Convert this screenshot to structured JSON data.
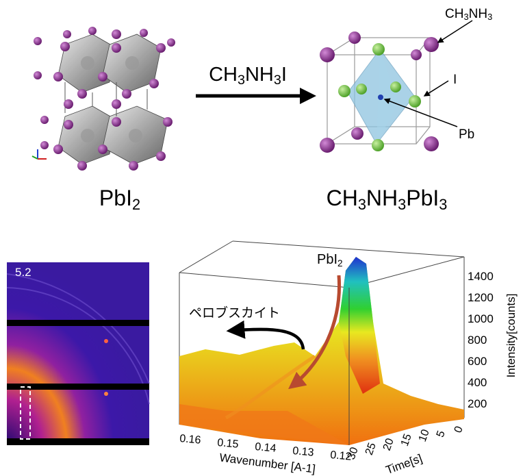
{
  "top": {
    "reactant": {
      "parts": [
        "PbI",
        "2"
      ]
    },
    "reagent": {
      "parts": [
        "CH",
        "3",
        "NH",
        "3",
        "I"
      ]
    },
    "product": {
      "parts": [
        "CH",
        "3",
        "NH",
        "3",
        "PbI",
        "3"
      ]
    },
    "site_labels": {
      "cation": {
        "parts": [
          "CH",
          "3",
          "NH",
          "3"
        ]
      },
      "halide": "I",
      "metal": "Pb"
    }
  },
  "bottom": {
    "frame_label": "5.2",
    "peak_label": {
      "parts": [
        "PbI",
        "2"
      ]
    },
    "perovskite_label": "ペロブスカイト",
    "plot": {
      "z_label": "Intensity[counts]",
      "z_ticks": [
        1400,
        1200,
        1000,
        800,
        600,
        400,
        200
      ],
      "x_label": "Wavenumber [A-1]",
      "x_ticks": [
        0.16,
        0.15,
        0.14,
        0.13,
        0.12
      ],
      "y_label": "Time[s]",
      "y_ticks": [
        30,
        25,
        20,
        15,
        10,
        5,
        0
      ]
    }
  }
}
